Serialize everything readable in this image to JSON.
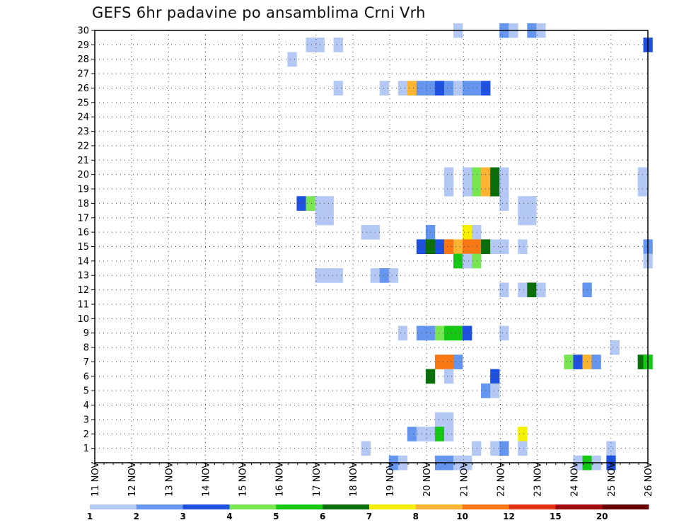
{
  "chart_data": {
    "type": "heatmap",
    "title": "GEFS 6hr padavine po ansamblima Crni Vrh",
    "x_tick_labels": [
      "11 NOV",
      "12 NOV",
      "13 NOV",
      "14 NOV",
      "15 NOV",
      "16 NOV",
      "17 NOV",
      "18 NOV",
      "19 NOV",
      "20 NOV",
      "21 NOV",
      "22 NOV",
      "23 NOV",
      "24 NOV",
      "25 NOV",
      "26 NOV"
    ],
    "y_range": [
      1,
      30
    ],
    "y_tick_labels": [
      "1",
      "2",
      "3",
      "4",
      "5",
      "6",
      "7",
      "8",
      "9",
      "10",
      "11",
      "12",
      "13",
      "14",
      "15",
      "16",
      "17",
      "18",
      "19",
      "20",
      "21",
      "22",
      "23",
      "24",
      "25",
      "26",
      "27",
      "28",
      "29",
      "30"
    ],
    "grid": true,
    "legend": {
      "placement": "bottom",
      "levels": [
        "1",
        "2",
        "3",
        "4",
        "5",
        "6",
        "7",
        "8",
        "10",
        "12",
        "15",
        "20"
      ],
      "colors": [
        "#b4c8f5",
        "#6496f0",
        "#1e50e1",
        "#78e650",
        "#14c814",
        "#0a6e0a",
        "#f5f000",
        "#fab432",
        "#fa7814",
        "#e13214",
        "#a00a0a",
        "#640000"
      ]
    },
    "cells": [
      {
        "member": 30,
        "day": 20.85,
        "level": 1
      },
      {
        "member": 30,
        "day": 22.1,
        "level": 2
      },
      {
        "member": 30,
        "day": 22.35,
        "level": 1
      },
      {
        "member": 30,
        "day": 22.85,
        "level": 2
      },
      {
        "member": 30,
        "day": 23.1,
        "level": 1
      },
      {
        "member": 29,
        "day": 16.85,
        "level": 1
      },
      {
        "member": 29,
        "day": 17.1,
        "level": 1
      },
      {
        "member": 29,
        "day": 17.6,
        "level": 1
      },
      {
        "member": 29,
        "day": 26.0,
        "level": 3
      },
      {
        "member": 28,
        "day": 16.35,
        "level": 1
      },
      {
        "member": 26,
        "day": 17.6,
        "level": 1
      },
      {
        "member": 26,
        "day": 18.85,
        "level": 1
      },
      {
        "member": 26,
        "day": 19.35,
        "level": 1
      },
      {
        "member": 26,
        "day": 19.6,
        "level": 8
      },
      {
        "member": 26,
        "day": 19.85,
        "level": 2
      },
      {
        "member": 26,
        "day": 20.1,
        "level": 2
      },
      {
        "member": 26,
        "day": 20.35,
        "level": 3
      },
      {
        "member": 26,
        "day": 20.6,
        "level": 2
      },
      {
        "member": 26,
        "day": 20.85,
        "level": 1
      },
      {
        "member": 26,
        "day": 21.1,
        "level": 2
      },
      {
        "member": 26,
        "day": 21.35,
        "level": 2
      },
      {
        "member": 26,
        "day": 21.6,
        "level": 3
      },
      {
        "member": 20,
        "day": 20.6,
        "level": 1
      },
      {
        "member": 20,
        "day": 21.1,
        "level": 1
      },
      {
        "member": 20,
        "day": 21.35,
        "level": 4
      },
      {
        "member": 20,
        "day": 21.6,
        "level": 8
      },
      {
        "member": 20,
        "day": 21.85,
        "level": 6
      },
      {
        "member": 20,
        "day": 22.1,
        "level": 1
      },
      {
        "member": 20,
        "day": 25.85,
        "level": 1
      },
      {
        "member": 19,
        "day": 20.6,
        "level": 1
      },
      {
        "member": 19,
        "day": 21.1,
        "level": 1
      },
      {
        "member": 19,
        "day": 21.35,
        "level": 4
      },
      {
        "member": 19,
        "day": 21.6,
        "level": 8
      },
      {
        "member": 19,
        "day": 21.85,
        "level": 6
      },
      {
        "member": 19,
        "day": 22.1,
        "level": 1
      },
      {
        "member": 19,
        "day": 25.85,
        "level": 1
      },
      {
        "member": 18,
        "day": 16.6,
        "level": 3
      },
      {
        "member": 18,
        "day": 16.85,
        "level": 4
      },
      {
        "member": 18,
        "day": 17.1,
        "level": 1
      },
      {
        "member": 18,
        "day": 17.35,
        "level": 1
      },
      {
        "member": 18,
        "day": 22.1,
        "level": 1
      },
      {
        "member": 18,
        "day": 22.6,
        "level": 1
      },
      {
        "member": 18,
        "day": 22.85,
        "level": 1
      },
      {
        "member": 17,
        "day": 17.1,
        "level": 1
      },
      {
        "member": 17,
        "day": 17.35,
        "level": 1
      },
      {
        "member": 17,
        "day": 22.6,
        "level": 1
      },
      {
        "member": 17,
        "day": 22.85,
        "level": 1
      },
      {
        "member": 16,
        "day": 18.35,
        "level": 1
      },
      {
        "member": 16,
        "day": 18.6,
        "level": 1
      },
      {
        "member": 16,
        "day": 20.1,
        "level": 2
      },
      {
        "member": 16,
        "day": 21.1,
        "level": 7
      },
      {
        "member": 16,
        "day": 21.35,
        "level": 1
      },
      {
        "member": 15,
        "day": 19.85,
        "level": 3
      },
      {
        "member": 15,
        "day": 20.1,
        "level": 6
      },
      {
        "member": 15,
        "day": 20.35,
        "level": 3
      },
      {
        "member": 15,
        "day": 20.6,
        "level": 9
      },
      {
        "member": 15,
        "day": 20.85,
        "level": 8
      },
      {
        "member": 15,
        "day": 21.1,
        "level": 9
      },
      {
        "member": 15,
        "day": 21.35,
        "level": 9
      },
      {
        "member": 15,
        "day": 21.6,
        "level": 6
      },
      {
        "member": 15,
        "day": 21.85,
        "level": 1
      },
      {
        "member": 15,
        "day": 22.1,
        "level": 1
      },
      {
        "member": 15,
        "day": 22.6,
        "level": 1
      },
      {
        "member": 15,
        "day": 26.0,
        "level": 2
      },
      {
        "member": 14,
        "day": 20.85,
        "level": 5
      },
      {
        "member": 14,
        "day": 21.1,
        "level": 1
      },
      {
        "member": 14,
        "day": 21.35,
        "level": 4
      },
      {
        "member": 14,
        "day": 26.0,
        "level": 1
      },
      {
        "member": 13,
        "day": 17.1,
        "level": 1
      },
      {
        "member": 13,
        "day": 17.35,
        "level": 1
      },
      {
        "member": 13,
        "day": 17.6,
        "level": 1
      },
      {
        "member": 13,
        "day": 18.6,
        "level": 1
      },
      {
        "member": 13,
        "day": 18.85,
        "level": 2
      },
      {
        "member": 13,
        "day": 19.1,
        "level": 1
      },
      {
        "member": 12,
        "day": 22.1,
        "level": 1
      },
      {
        "member": 12,
        "day": 22.6,
        "level": 1
      },
      {
        "member": 12,
        "day": 22.85,
        "level": 6
      },
      {
        "member": 12,
        "day": 23.1,
        "level": 1
      },
      {
        "member": 12,
        "day": 24.35,
        "level": 2
      },
      {
        "member": 9,
        "day": 19.35,
        "level": 1
      },
      {
        "member": 9,
        "day": 19.85,
        "level": 2
      },
      {
        "member": 9,
        "day": 20.1,
        "level": 2
      },
      {
        "member": 9,
        "day": 20.35,
        "level": 4
      },
      {
        "member": 9,
        "day": 20.6,
        "level": 5
      },
      {
        "member": 9,
        "day": 20.85,
        "level": 5
      },
      {
        "member": 9,
        "day": 21.1,
        "level": 3
      },
      {
        "member": 9,
        "day": 22.1,
        "level": 1
      },
      {
        "member": 8,
        "day": 25.1,
        "level": 1
      },
      {
        "member": 7,
        "day": 20.35,
        "level": 9
      },
      {
        "member": 7,
        "day": 20.6,
        "level": 9
      },
      {
        "member": 7,
        "day": 20.85,
        "level": 2
      },
      {
        "member": 7,
        "day": 23.85,
        "level": 4
      },
      {
        "member": 7,
        "day": 24.1,
        "level": 3
      },
      {
        "member": 7,
        "day": 24.35,
        "level": 8
      },
      {
        "member": 7,
        "day": 24.6,
        "level": 2
      },
      {
        "member": 7,
        "day": 25.85,
        "level": 6
      },
      {
        "member": 7,
        "day": 26.0,
        "level": 5
      },
      {
        "member": 6,
        "day": 20.1,
        "level": 6
      },
      {
        "member": 6,
        "day": 20.6,
        "level": 1
      },
      {
        "member": 6,
        "day": 21.85,
        "level": 3
      },
      {
        "member": 5,
        "day": 21.6,
        "level": 2
      },
      {
        "member": 5,
        "day": 21.85,
        "level": 1
      },
      {
        "member": 3,
        "day": 20.35,
        "level": 1
      },
      {
        "member": 3,
        "day": 20.6,
        "level": 1
      },
      {
        "member": 2,
        "day": 19.6,
        "level": 2
      },
      {
        "member": 2,
        "day": 19.85,
        "level": 1
      },
      {
        "member": 2,
        "day": 20.1,
        "level": 1
      },
      {
        "member": 2,
        "day": 20.35,
        "level": 5
      },
      {
        "member": 2,
        "day": 20.6,
        "level": 1
      },
      {
        "member": 2,
        "day": 22.6,
        "level": 7
      },
      {
        "member": 1,
        "day": 18.35,
        "level": 1
      },
      {
        "member": 1,
        "day": 21.35,
        "level": 1
      },
      {
        "member": 1,
        "day": 21.85,
        "level": 1
      },
      {
        "member": 1,
        "day": 22.1,
        "level": 2
      },
      {
        "member": 1,
        "day": 22.6,
        "level": 1
      },
      {
        "member": 1,
        "day": 25.0,
        "level": 1
      },
      {
        "member": 0,
        "day": 19.1,
        "level": 2
      },
      {
        "member": 0,
        "day": 19.35,
        "level": 1
      },
      {
        "member": 0,
        "day": 20.35,
        "level": 2
      },
      {
        "member": 0,
        "day": 20.6,
        "level": 2
      },
      {
        "member": 0,
        "day": 20.85,
        "level": 1
      },
      {
        "member": 0,
        "day": 21.1,
        "level": 1
      },
      {
        "member": 0,
        "day": 24.1,
        "level": 1
      },
      {
        "member": 0,
        "day": 24.35,
        "level": 5
      },
      {
        "member": 0,
        "day": 24.6,
        "level": 1
      },
      {
        "member": 0,
        "day": 25.0,
        "level": 3
      }
    ]
  }
}
